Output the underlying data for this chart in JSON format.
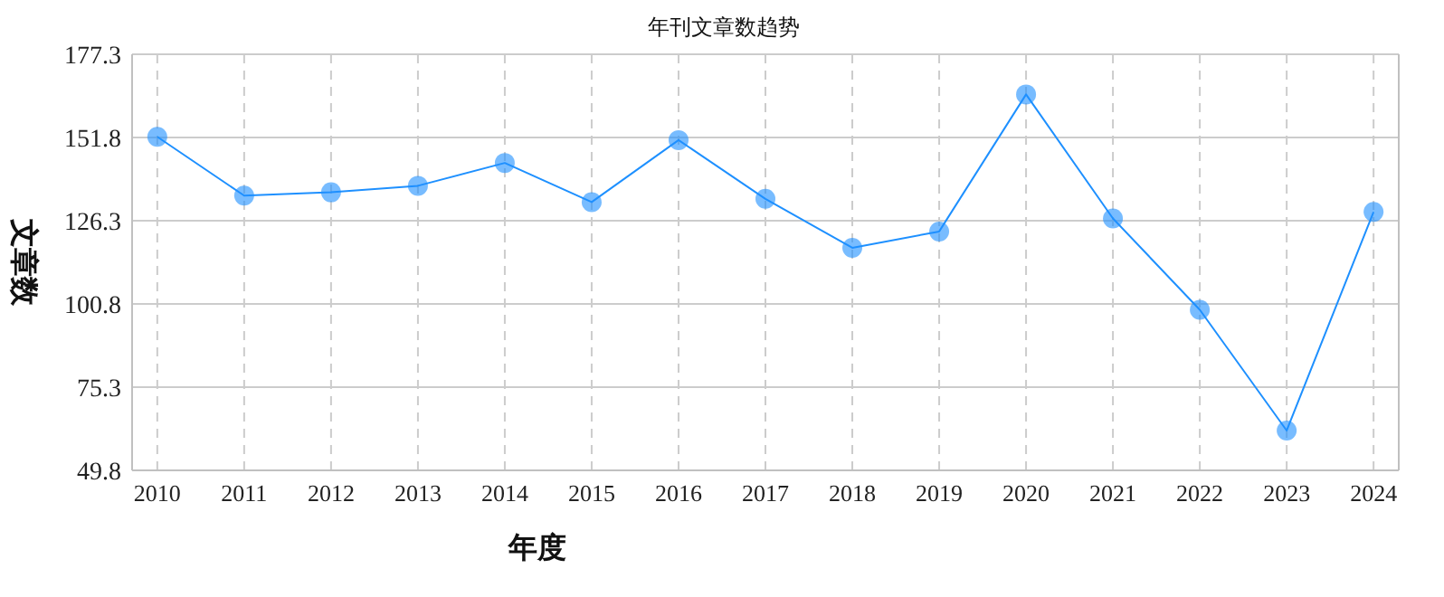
{
  "chart_data": {
    "type": "line",
    "title": "年刊文章数趋势",
    "xlabel": "年度",
    "ylabel": "文章数",
    "categories": [
      "2010",
      "2011",
      "2012",
      "2013",
      "2014",
      "2015",
      "2016",
      "2017",
      "2018",
      "2019",
      "2020",
      "2021",
      "2022",
      "2023",
      "2024"
    ],
    "series": [
      {
        "color": "#1e90ff",
        "values": [
          152,
          134,
          135,
          137,
          144,
          132,
          151,
          133,
          118,
          123,
          165,
          127,
          99,
          62,
          129
        ]
      }
    ],
    "ylim": [
      49.8,
      177.3
    ],
    "yticks": [
      49.8,
      75.3,
      100.8,
      126.3,
      151.8,
      177.3
    ],
    "grid": true,
    "marker": "circle",
    "line_style": "solid"
  }
}
